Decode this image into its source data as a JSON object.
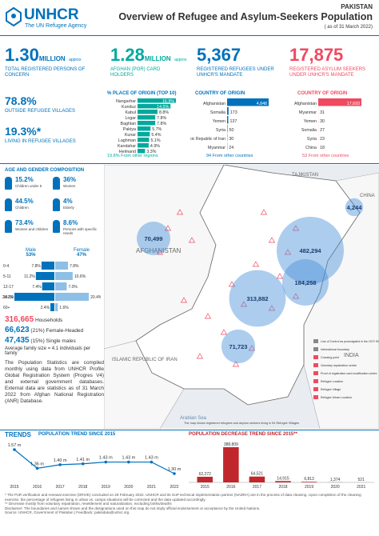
{
  "header": {
    "logo": "UNHCR",
    "tagline": "The UN Refugee Agency",
    "country": "PAKISTAN",
    "title": "Overview of Refugee and Asylum-Seekers Population",
    "date": "( as of 31 March 2022)"
  },
  "stats": [
    {
      "value": "1.30",
      "unit": "MILLION",
      "note": "approx",
      "label": "TOTAL REGISTERED PERSONS OF CONCERN"
    },
    {
      "value": "1.28",
      "unit": "MILLION",
      "note": "approx",
      "label": "AFGHAN (PoR) CARD HOLDERS"
    },
    {
      "value": "5,367",
      "label": "REGISTERED REFUGEES UNDER UNHCR'S MANDATE"
    },
    {
      "value": "17,875",
      "label": "REGISTERED ASYLUM SEEKERS UNDER UNHCR'S MANDATE"
    }
  ],
  "villages": [
    {
      "value": "78.8%",
      "label": "OUTSIDE REFUGEE VILLAGES"
    },
    {
      "value": "19.3%*",
      "label": "LIVING IN REFUGEE VILLAGES"
    }
  ],
  "place_of_origin": {
    "title": "% PLACE OF ORIGIN (TOP 10)",
    "categories": [
      "Nangarhar",
      "Kunduz",
      "Kabul",
      "Logar",
      "Baghlan",
      "Paktya",
      "Kunar",
      "Laghman",
      "Kandahar",
      "Helmand"
    ],
    "values": [
      16.9,
      14.5,
      8.8,
      7.8,
      7.8,
      5.7,
      5.4,
      5.1,
      4.9,
      3.3
    ],
    "value_labels": [
      "16.9%",
      "14.5%",
      "8.8%",
      "7.8%",
      "7.8%",
      "5.7%",
      "5.4%",
      "5.1%",
      "4.9%",
      "3.3%"
    ],
    "color": "#00a99d",
    "other": "19.8% From other regions"
  },
  "country_refugees": {
    "title": "COUNTRY OF ORIGIN",
    "categories": [
      "Afghanistan",
      "Somalia",
      "Yemen",
      "Syria",
      "Islamic Republic of Iran",
      "Myanmar"
    ],
    "values": [
      4848,
      173,
      137,
      50,
      30,
      24
    ],
    "value_labels": [
      "4,848",
      "173",
      "137",
      "50",
      "30",
      "24"
    ],
    "color": "#0072bc",
    "other": "94 From other countries"
  },
  "country_asylum": {
    "title": "COUNTRY OF ORIGIN",
    "categories": [
      "Afghanistan",
      "Myanmar",
      "Yemen",
      "Somalia",
      "Syria",
      "China"
    ],
    "values": [
      17693,
      31,
      30,
      27,
      23,
      18
    ],
    "value_labels": [
      "17,693",
      "31",
      "30",
      "27",
      "23",
      "18"
    ],
    "color": "#ef4a60",
    "other": "53 From other countries"
  },
  "age_gender": {
    "title": "AGE AND GENDER COMPOSITION",
    "indicators": [
      {
        "value": "15.2%",
        "label": "Children under 5"
      },
      {
        "value": "36%",
        "label": "Women"
      },
      {
        "value": "44.5%",
        "label": "Children"
      },
      {
        "value": "4%",
        "label": "Elderly"
      },
      {
        "value": "73.4%",
        "label": "Women and children"
      },
      {
        "value": "8.6%",
        "label": "Persons with specific needs"
      }
    ],
    "male": {
      "label": "Male",
      "value": "53%"
    },
    "female": {
      "label": "Female",
      "value": "47%"
    },
    "pyramid": {
      "groups": [
        "0-4",
        "5-11",
        "12-17",
        "18-59",
        "60+"
      ],
      "male": [
        7.8,
        11.2,
        7.4,
        24.2,
        2.4
      ],
      "male_labels": [
        "7.8%",
        "11.2%",
        "7.4%",
        "24.2%",
        "2.4%"
      ],
      "female": [
        7.8,
        10.6,
        7.0,
        20.4,
        1.6
      ],
      "female_labels": [
        "7.8%",
        "10.6%",
        "7.0%",
        "20.4%",
        "1.6%"
      ]
    }
  },
  "households": [
    {
      "value": "316,665",
      "label": "Households"
    },
    {
      "value": "66,623",
      "label": "(21%) Female-Headed"
    },
    {
      "value": "47,435",
      "label": "(15%) Single males"
    }
  ],
  "family_size": "Average family size = 4.1 individuals per family",
  "note": "The Population Statistics are compiled monthly using data from UNHCR Profile Global Registration System (Progres V4) and external government databases. External data are statistics as of 31 March 2022 from Afghan National Registration (ANR) Database.",
  "map": {
    "countries": [
      "AFGHANISTAN",
      "TAJIKISTAN",
      "CHINA",
      "ISLAMIC REPUBLIC OF IRAN",
      "INDIA",
      "Arabian Sea"
    ],
    "bubbles": {
      "values": [
        70499,
        4244,
        482294,
        184258,
        313882,
        71723
      ],
      "value_labels": [
        "70,499",
        "4,244",
        "482,294",
        "184,258",
        "313,882",
        "71,723"
      ]
    },
    "legend": [
      "Line of Control as promulgated in the 1972 SIMLA Agreement",
      "International boundary",
      "Crossing point",
      "Voluntary repatriation centre",
      "Proof of registration card modification centre",
      "Refugee Location",
      "Refugee Village",
      "Refugee Urban Location"
    ],
    "caption": "The map shows registered refugees and asylum seekers living in 54 Refugee Villages"
  },
  "trends": {
    "title": "TRENDS",
    "population": {
      "title": "POPULATION TREND SINCE 2015",
      "categories": [
        "2015",
        "2016",
        "2017",
        "2018",
        "2019",
        "2020",
        "2021",
        "2022"
      ],
      "values": [
        1.57,
        1.36,
        1.4,
        1.41,
        1.43,
        1.43,
        1.43,
        1.3
      ],
      "value_labels": [
        "1.57 m",
        "1.36 m",
        "1.40 m",
        "1.41 m",
        "1.43 m",
        "1.43 m",
        "1.43 m",
        "1.30 m"
      ]
    },
    "decrease": {
      "title": "POPULATION DECREASE TREND SINCE 2015**",
      "categories": [
        "2015",
        "2016",
        "2017",
        "2018",
        "2019",
        "2020",
        "2021"
      ],
      "values": [
        62272,
        388809,
        64521,
        14915,
        6813,
        1374,
        521
      ],
      "value_labels": [
        "62,272",
        "388,809",
        "64,521",
        "14,915",
        "6,813",
        "1,374",
        "521"
      ],
      "color": "#c0272d"
    }
  },
  "footnotes": [
    "* The PoR verification and renewal exercise (DRIVE) concluded on 28 February 2022. UNHCR and its GoP technical implementation partner (NADRA) are in the process of data cleaning. Upon completion of the cleaning exercise, the percentage of refugees living in urban vs. camps situations will be corrected and the data updated accordingly.",
    "** Decrease mostly from voluntary repatriation, resettlement and naturalization, excluding births/deaths",
    "Disclaimer: The boundaries and names shown and the designations used on this map do not imply official endorsement or acceptance by the United Nations.",
    "Source: UNHCR, Government of Pakistan | Feedback: pakisdata@unhcr.org"
  ]
}
